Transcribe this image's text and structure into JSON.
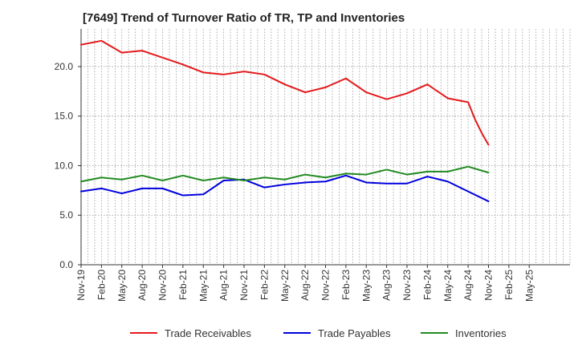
{
  "chart_data": {
    "type": "line",
    "title": "[7649]  Trend of Turnover Ratio of TR, TP and Inventories",
    "xlabel": "",
    "ylabel": "",
    "ylim": [
      0,
      23.8
    ],
    "yticks": [
      "0.0",
      "5.0",
      "10.0",
      "15.0",
      "20.0"
    ],
    "ytick_values": [
      0,
      5,
      10,
      15,
      20
    ],
    "grid": true,
    "legend": "bottom",
    "x": [
      "Nov-19",
      "Dec-19",
      "Jan-20",
      "Feb-20",
      "Mar-20",
      "Apr-20",
      "May-20",
      "Jun-20",
      "Jul-20",
      "Aug-20",
      "Sep-20",
      "Oct-20",
      "Nov-20",
      "Dec-20",
      "Jan-21",
      "Feb-21",
      "Mar-21",
      "Apr-21",
      "May-21",
      "Jun-21",
      "Jul-21",
      "Aug-21",
      "Sep-21",
      "Oct-21",
      "Nov-21",
      "Dec-21",
      "Jan-22",
      "Feb-22",
      "Mar-22",
      "Apr-22",
      "May-22",
      "Jun-22",
      "Jul-22",
      "Aug-22",
      "Sep-22",
      "Oct-22",
      "Nov-22",
      "Dec-22",
      "Jan-23",
      "Feb-23",
      "Mar-23",
      "Apr-23",
      "May-23",
      "Jun-23",
      "Jul-23",
      "Aug-23",
      "Sep-23",
      "Oct-23",
      "Nov-23",
      "Dec-23",
      "Jan-24",
      "Feb-24",
      "Mar-24",
      "Apr-24",
      "May-24",
      "Jun-24",
      "Jul-24",
      "Aug-24",
      "Sep-24",
      "Oct-24",
      "Nov-24",
      "Dec-24",
      "Jan-25",
      "Feb-25",
      "Mar-25",
      "Apr-25",
      "May-25",
      "Jun-25",
      "Jul-25",
      "Aug-25",
      "Sep-25",
      "Oct-25",
      "Nov-25"
    ],
    "xticks": [
      "Nov-19",
      "Feb-20",
      "May-20",
      "Aug-20",
      "Nov-20",
      "Feb-21",
      "May-21",
      "Aug-21",
      "Nov-21",
      "Feb-22",
      "May-22",
      "Aug-22",
      "Nov-22",
      "Feb-23",
      "May-23",
      "Aug-23",
      "Nov-23",
      "Feb-24",
      "May-24",
      "Aug-24",
      "Nov-24",
      "Feb-25",
      "May-25"
    ],
    "series": [
      {
        "name": "Trade Receivables",
        "color": "#e41a1c",
        "points": [
          [
            "Nov-19",
            22.2
          ],
          [
            "Feb-20",
            22.6
          ],
          [
            "May-20",
            21.4
          ],
          [
            "Aug-20",
            21.6
          ],
          [
            "Nov-20",
            20.9
          ],
          [
            "Feb-21",
            20.2
          ],
          [
            "May-21",
            19.4
          ],
          [
            "Aug-21",
            19.2
          ],
          [
            "Nov-21",
            19.5
          ],
          [
            "Feb-22",
            19.2
          ],
          [
            "May-22",
            18.2
          ],
          [
            "Aug-22",
            17.4
          ],
          [
            "Nov-22",
            17.9
          ],
          [
            "Feb-23",
            18.8
          ],
          [
            "May-23",
            17.4
          ],
          [
            "Aug-23",
            16.7
          ],
          [
            "Nov-23",
            17.3
          ],
          [
            "Feb-24",
            18.2
          ],
          [
            "May-24",
            16.8
          ],
          [
            "Aug-24",
            16.4
          ],
          [
            "Sep-24",
            14.7
          ],
          [
            "Oct-24",
            13.3
          ],
          [
            "Nov-24",
            12.1
          ]
        ]
      },
      {
        "name": "Trade Payables",
        "color": "#0000dd",
        "points": [
          [
            "Nov-19",
            7.4
          ],
          [
            "Feb-20",
            7.7
          ],
          [
            "May-20",
            7.2
          ],
          [
            "Aug-20",
            7.7
          ],
          [
            "Nov-20",
            7.7
          ],
          [
            "Feb-21",
            7.0
          ],
          [
            "May-21",
            7.1
          ],
          [
            "Aug-21",
            8.5
          ],
          [
            "Nov-21",
            8.6
          ],
          [
            "Feb-22",
            7.8
          ],
          [
            "May-22",
            8.1
          ],
          [
            "Aug-22",
            8.3
          ],
          [
            "Nov-22",
            8.4
          ],
          [
            "Feb-23",
            9.0
          ],
          [
            "May-23",
            8.3
          ],
          [
            "Aug-23",
            8.2
          ],
          [
            "Nov-23",
            8.2
          ],
          [
            "Feb-24",
            8.9
          ],
          [
            "May-24",
            8.4
          ],
          [
            "Aug-24",
            7.4
          ],
          [
            "Nov-24",
            6.4
          ]
        ]
      },
      {
        "name": "Inventories",
        "color": "#228b22",
        "points": [
          [
            "Nov-19",
            8.4
          ],
          [
            "Feb-20",
            8.8
          ],
          [
            "May-20",
            8.6
          ],
          [
            "Aug-20",
            9.0
          ],
          [
            "Nov-20",
            8.5
          ],
          [
            "Feb-21",
            9.0
          ],
          [
            "May-21",
            8.5
          ],
          [
            "Aug-21",
            8.8
          ],
          [
            "Nov-21",
            8.5
          ],
          [
            "Feb-22",
            8.8
          ],
          [
            "May-22",
            8.6
          ],
          [
            "Aug-22",
            9.1
          ],
          [
            "Nov-22",
            8.8
          ],
          [
            "Feb-23",
            9.2
          ],
          [
            "May-23",
            9.1
          ],
          [
            "Aug-23",
            9.6
          ],
          [
            "Nov-23",
            9.1
          ],
          [
            "Feb-24",
            9.4
          ],
          [
            "May-24",
            9.4
          ],
          [
            "Aug-24",
            9.9
          ],
          [
            "Nov-24",
            9.3
          ]
        ]
      }
    ]
  }
}
